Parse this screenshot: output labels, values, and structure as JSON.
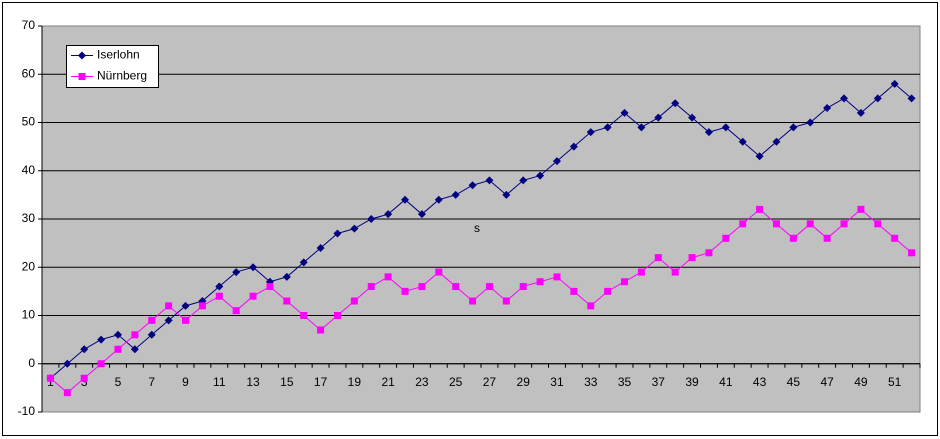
{
  "chart_data": {
    "type": "line",
    "annotation": "s",
    "categories": [
      1,
      null,
      3,
      null,
      5,
      null,
      7,
      null,
      9,
      null,
      11,
      null,
      13,
      null,
      15,
      null,
      17,
      null,
      19,
      null,
      21,
      null,
      23,
      null,
      25,
      null,
      27,
      null,
      29,
      null,
      31,
      null,
      33,
      null,
      35,
      null,
      37,
      null,
      39,
      null,
      41,
      null,
      43,
      null,
      45,
      null,
      47,
      null,
      49,
      null,
      51,
      null
    ],
    "series": [
      {
        "name": "Iserlohn",
        "color": "#000080",
        "marker": "diamond",
        "values": [
          -3,
          0,
          3,
          5,
          6,
          3,
          6,
          9,
          12,
          13,
          16,
          19,
          20,
          17,
          18,
          21,
          24,
          27,
          28,
          30,
          31,
          34,
          31,
          34,
          35,
          37,
          38,
          35,
          38,
          39,
          42,
          45,
          48,
          49,
          52,
          49,
          51,
          54,
          51,
          48,
          49,
          46,
          43,
          46,
          49,
          50,
          53,
          55,
          52,
          55,
          58,
          55
        ]
      },
      {
        "name": "Nürnberg",
        "color": "#ff00ff",
        "marker": "square",
        "values": [
          -3,
          -6,
          -3,
          0,
          3,
          6,
          9,
          12,
          9,
          12,
          14,
          11,
          14,
          16,
          13,
          10,
          7,
          10,
          13,
          16,
          18,
          15,
          16,
          19,
          16,
          13,
          16,
          13,
          16,
          17,
          18,
          15,
          12,
          15,
          17,
          19,
          22,
          19,
          22,
          23,
          26,
          29,
          32,
          29,
          26,
          29,
          26,
          29,
          32,
          29,
          26,
          23
        ]
      }
    ],
    "ylim": [
      -10,
      70
    ],
    "yticks": [
      -10,
      0,
      10,
      20,
      30,
      40,
      50,
      60,
      70
    ],
    "grid": true,
    "plot_background": "#c0c0c0",
    "legend": "top-left"
  }
}
